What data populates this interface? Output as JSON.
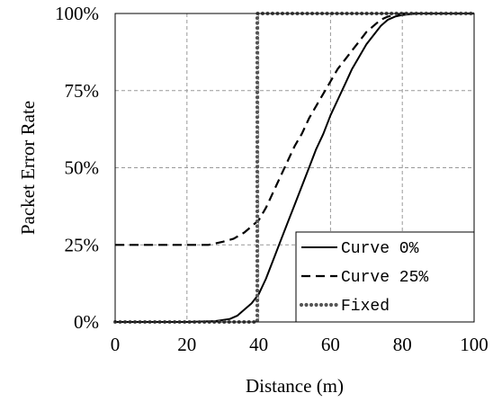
{
  "chart_data": {
    "type": "line",
    "title": "",
    "xlabel": "Distance (m)",
    "ylabel": "Packet Error Rate",
    "xlim": [
      0,
      100
    ],
    "ylim": [
      0,
      100
    ],
    "x_ticks": [
      "0",
      "20",
      "40",
      "60",
      "80",
      "100"
    ],
    "y_ticks": [
      "0%",
      "25%",
      "50%",
      "75%",
      "100%"
    ],
    "grid": true,
    "legend_position": "bottom-right",
    "series": [
      {
        "name": "Curve 0%",
        "style": "solid",
        "color": "#000000",
        "x": [
          0,
          10,
          20,
          28,
          32,
          34,
          36,
          38,
          40,
          42,
          44,
          46,
          48,
          50,
          52,
          54,
          56,
          58,
          60,
          62,
          64,
          66,
          68,
          70,
          72,
          74,
          76,
          78,
          80,
          84,
          90,
          100
        ],
        "y": [
          0,
          0,
          0,
          0.3,
          1,
          2,
          4,
          6,
          9,
          14,
          20,
          26,
          32,
          38,
          44,
          50,
          56,
          61,
          67,
          72,
          77,
          82,
          86,
          90,
          93,
          96,
          98,
          99,
          99.5,
          100,
          100,
          100
        ]
      },
      {
        "name": "Curve 25%",
        "style": "dashed",
        "color": "#000000",
        "x": [
          0,
          10,
          20,
          26,
          30,
          33,
          36,
          38,
          40,
          42,
          44,
          46,
          48,
          50,
          52,
          54,
          56,
          58,
          60,
          62,
          64,
          66,
          68,
          70,
          72,
          74,
          76,
          78,
          80,
          84,
          90,
          100
        ],
        "y": [
          25,
          25,
          25,
          25,
          26,
          27,
          29,
          31,
          33,
          37,
          42,
          47,
          52,
          57,
          61,
          66,
          70,
          74,
          78,
          82,
          85,
          88,
          91,
          94,
          96,
          98,
          99,
          99.5,
          100,
          100,
          100,
          100
        ]
      },
      {
        "name": "Fixed",
        "style": "dotted",
        "color": "#555555",
        "x": [
          0,
          39.6,
          39.6,
          100
        ],
        "y": [
          0,
          0,
          100,
          100
        ]
      }
    ]
  }
}
